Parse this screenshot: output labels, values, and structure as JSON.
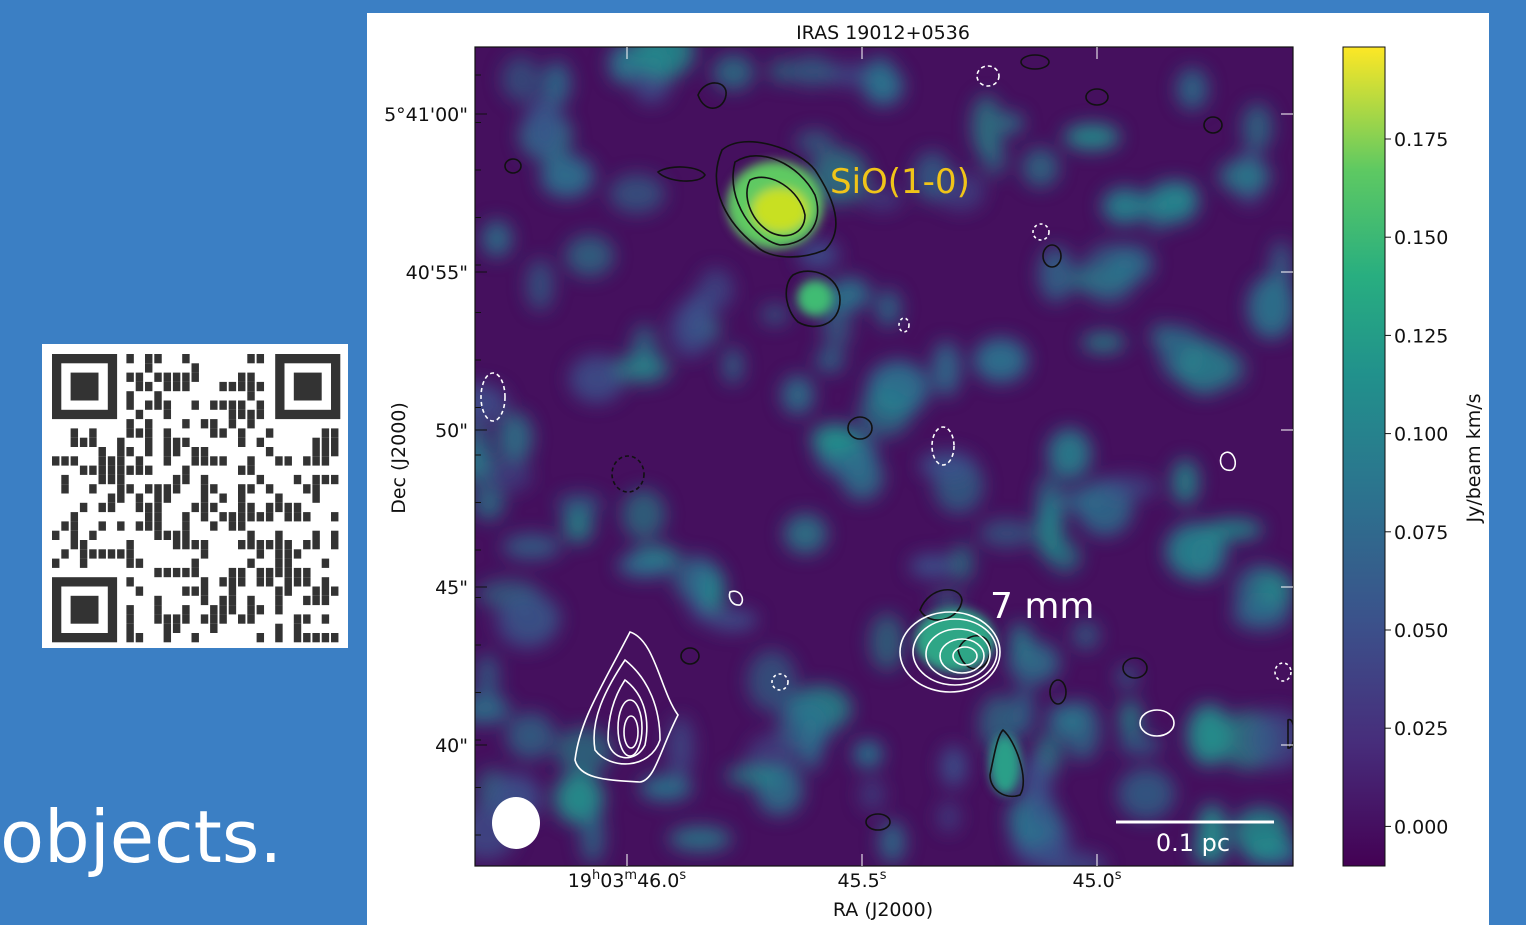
{
  "slide": {
    "text": "objects."
  },
  "figure": {
    "title": "IRAS 19012+0536",
    "x_axis_label": "RA (J2000)",
    "y_axis_label": "Dec (J2000)",
    "y_ticks": [
      "5°41'00\"",
      "40'55\"",
      "50\"",
      "45\"",
      "40\""
    ],
    "x_ticks": [
      {
        "parts": [
          "19",
          "h",
          "03",
          "m",
          "46.0",
          "s"
        ]
      },
      {
        "parts": [
          "45.5",
          "s"
        ]
      },
      {
        "parts": [
          "45.0",
          "s"
        ]
      }
    ],
    "annotations": {
      "line": "SiO(1-0)",
      "continuum": "7 mm",
      "scale_bar": "0.1 pc"
    },
    "colorbar": {
      "label": "Jy/beam km/s",
      "ticks": [
        "0.175",
        "0.150",
        "0.125",
        "0.100",
        "0.075",
        "0.050",
        "0.025",
        "0.000"
      ]
    }
  }
}
